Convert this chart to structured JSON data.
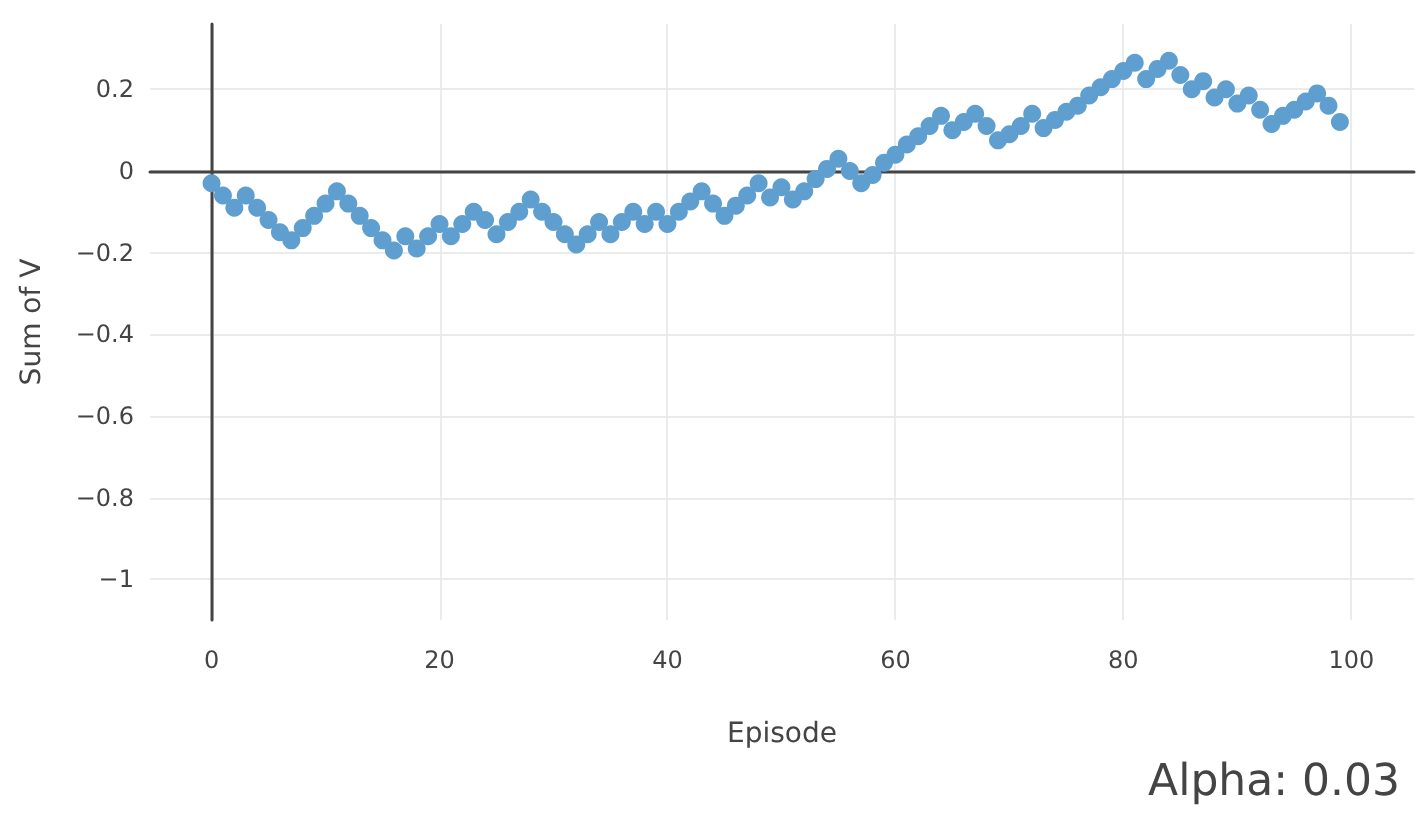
{
  "chart_data": {
    "type": "scatter",
    "xlabel": "Episode",
    "ylabel": "Sum of V",
    "annotations": [
      "Alpha: 0.03"
    ],
    "x": [
      0,
      1,
      2,
      3,
      4,
      5,
      6,
      7,
      8,
      9,
      10,
      11,
      12,
      13,
      14,
      15,
      16,
      17,
      18,
      19,
      20,
      21,
      22,
      23,
      24,
      25,
      26,
      27,
      28,
      29,
      30,
      31,
      32,
      33,
      34,
      35,
      36,
      37,
      38,
      39,
      40,
      41,
      42,
      43,
      44,
      45,
      46,
      47,
      48,
      49,
      50,
      51,
      52,
      53,
      54,
      55,
      56,
      57,
      58,
      59,
      60,
      61,
      62,
      63,
      64,
      65,
      66,
      67,
      68,
      69,
      70,
      71,
      72,
      73,
      74,
      75,
      76,
      77,
      78,
      79,
      80,
      81,
      82,
      83,
      84,
      85,
      86,
      87,
      88,
      89,
      90,
      91,
      92,
      93,
      94,
      95,
      96,
      97,
      98,
      99
    ],
    "series": [
      {
        "color": "#5f9fd0",
        "values": [
          -0.03,
          -0.06,
          -0.09,
          -0.06,
          -0.09,
          -0.12,
          -0.15,
          -0.17,
          -0.14,
          -0.11,
          -0.08,
          -0.05,
          -0.08,
          -0.11,
          -0.14,
          -0.17,
          -0.195,
          -0.16,
          -0.19,
          -0.16,
          -0.13,
          -0.16,
          -0.13,
          -0.1,
          -0.12,
          -0.155,
          -0.125,
          -0.1,
          -0.07,
          -0.1,
          -0.125,
          -0.155,
          -0.18,
          -0.155,
          -0.125,
          -0.155,
          -0.125,
          -0.1,
          -0.13,
          -0.1,
          -0.13,
          -0.1,
          -0.075,
          -0.05,
          -0.08,
          -0.11,
          -0.085,
          -0.06,
          -0.03,
          -0.065,
          -0.04,
          -0.07,
          -0.05,
          -0.02,
          0.005,
          0.03,
          0.0,
          -0.03,
          -0.01,
          0.02,
          0.04,
          0.065,
          0.085,
          0.11,
          0.135,
          0.1,
          0.12,
          0.14,
          0.11,
          0.075,
          0.09,
          0.11,
          0.14,
          0.105,
          0.125,
          0.145,
          0.16,
          0.185,
          0.205,
          0.225,
          0.245,
          0.265,
          0.225,
          0.25,
          0.27,
          0.235,
          0.2,
          0.22,
          0.18,
          0.2,
          0.165,
          0.185,
          0.15,
          0.115,
          0.135,
          0.15,
          0.17,
          0.19,
          0.16,
          0.12
        ]
      }
    ],
    "xlim": [
      -5.4,
      105.5
    ],
    "xticks": [
      0,
      20,
      40,
      60,
      80,
      100
    ],
    "ylim": [
      -1.1,
      0.36
    ],
    "yticks": [
      {
        "value": -1,
        "label": "−1"
      },
      {
        "value": -0.8,
        "label": "−0.8"
      },
      {
        "value": -0.6,
        "label": "−0.6"
      },
      {
        "value": -0.4,
        "label": "−0.4"
      },
      {
        "value": -0.2,
        "label": "−0.2"
      },
      0,
      0.2
    ],
    "grid": true,
    "marker": "circle"
  }
}
